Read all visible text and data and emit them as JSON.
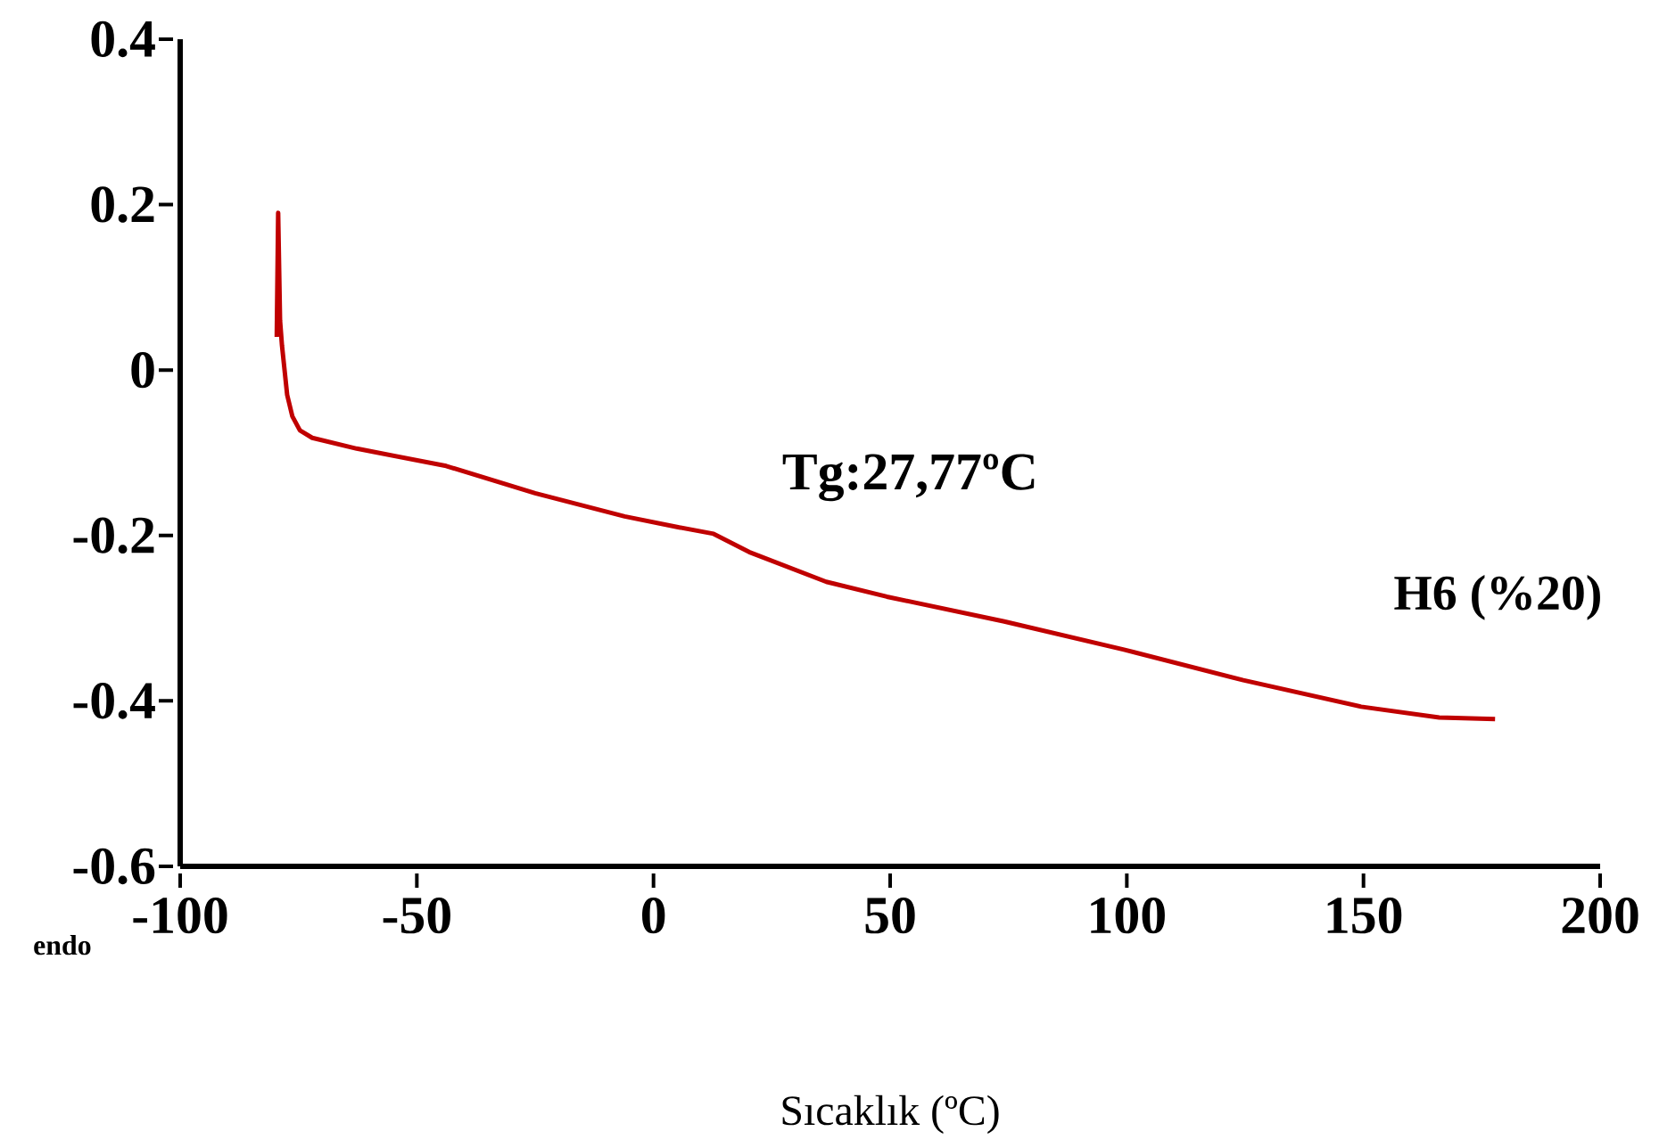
{
  "chart_data": {
    "type": "line",
    "xlabel": "Sıcaklık (ºC)",
    "annotations": [
      "Tg:27,77ºC",
      "endo"
    ],
    "xlim": [
      -100,
      200
    ],
    "xticks": [
      -100,
      -50,
      0,
      50,
      100,
      150,
      200
    ],
    "ylim": [
      -0.6,
      0.4
    ],
    "yticks": [
      -0.6,
      -0.4,
      -0.2,
      0,
      0.2,
      0.4
    ],
    "marker": "none",
    "line_style": "solid",
    "series": [
      {
        "name": "H6 (%20)",
        "color": "#c00000",
        "x": [
          -79.6,
          -79.3,
          -78.9,
          -78.5,
          -77.4,
          -76.3,
          -74.7,
          -72.1,
          -62.7,
          -43.8,
          -25,
          -6.1,
          5.2,
          12.7,
          20.2,
          36.5,
          49.3,
          74.1,
          99.4,
          124.6,
          149.5,
          166,
          177.8
        ],
        "values": [
          0.04,
          0.19,
          0.06,
          0.03,
          -0.03,
          -0.056,
          -0.073,
          -0.082,
          -0.095,
          -0.116,
          -0.149,
          -0.177,
          -0.19,
          -0.198,
          -0.22,
          -0.256,
          -0.274,
          -0.304,
          -0.338,
          -0.375,
          -0.407,
          -0.42,
          -0.422
        ]
      }
    ]
  }
}
